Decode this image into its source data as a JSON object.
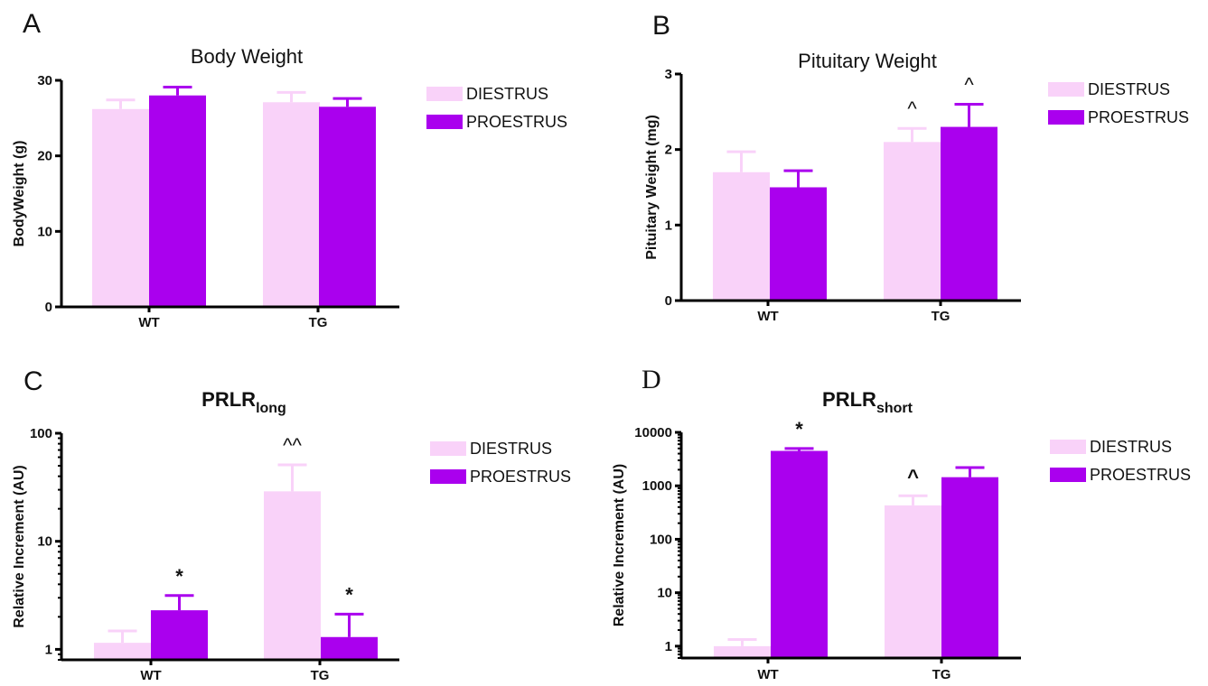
{
  "colors": {
    "diestrus": "#f9d2f9",
    "proestrus": "#aa00ee",
    "axis": "#000000"
  },
  "chart_data": [
    {
      "panel": "A",
      "type": "bar",
      "title": "Body Weight",
      "title_sub": "",
      "ylabel": "BodyWeight (g)",
      "scale": "linear",
      "ylim": [
        0,
        30
      ],
      "yticks": [
        0,
        10,
        20,
        30
      ],
      "ytick_labels": [
        "0",
        "10",
        "20",
        "30"
      ],
      "categories": [
        "WT",
        "TG"
      ],
      "series": [
        {
          "name": "DIESTRUS",
          "values": [
            26.2,
            27.1
          ],
          "errors": [
            1.2,
            1.3
          ],
          "annotations": [
            "",
            ""
          ]
        },
        {
          "name": "PROESTRUS",
          "values": [
            28.0,
            26.5
          ],
          "errors": [
            1.1,
            1.1
          ],
          "annotations": [
            "",
            ""
          ]
        }
      ],
      "legend": "right"
    },
    {
      "panel": "B",
      "type": "bar",
      "title": "Pituitary Weight",
      "title_sub": "",
      "ylabel": "Pituitary Weight (mg)",
      "scale": "linear",
      "ylim": [
        0,
        3
      ],
      "yticks": [
        0,
        1,
        2,
        3
      ],
      "ytick_labels": [
        "0",
        "1",
        "2",
        "3"
      ],
      "categories": [
        "WT",
        "TG"
      ],
      "series": [
        {
          "name": "DIESTRUS",
          "values": [
            1.7,
            2.1
          ],
          "errors": [
            0.27,
            0.18
          ],
          "annotations": [
            "",
            "^"
          ]
        },
        {
          "name": "PROESTRUS",
          "values": [
            1.5,
            2.3
          ],
          "errors": [
            0.22,
            0.3
          ],
          "annotations": [
            "",
            "^"
          ]
        }
      ],
      "legend": "right"
    },
    {
      "panel": "C",
      "type": "bar",
      "title": "PRLR",
      "title_sub": "long",
      "ylabel": "Relative Increment (AU)",
      "scale": "log",
      "ylim": [
        0.8,
        100
      ],
      "yticks": [
        1,
        10,
        100
      ],
      "ytick_labels": [
        "1",
        "10",
        "100"
      ],
      "categories": [
        "WT",
        "TG"
      ],
      "series": [
        {
          "name": "DIESTRUS",
          "values": [
            1.15,
            29
          ],
          "errors": [
            0.33,
            22
          ],
          "annotations": [
            "",
            "^^"
          ]
        },
        {
          "name": "PROESTRUS",
          "values": [
            2.3,
            1.3
          ],
          "errors": [
            0.85,
            0.82
          ],
          "annotations": [
            "*",
            "*"
          ]
        }
      ],
      "legend": "right"
    },
    {
      "panel": "D",
      "type": "bar",
      "title": "PRLR",
      "title_sub": "short",
      "ylabel": "Relative Increment (AU)",
      "scale": "log",
      "ylim": [
        0.6,
        10000
      ],
      "yticks": [
        1,
        10,
        100,
        1000,
        10000
      ],
      "ytick_labels": [
        "1",
        "10",
        "100",
        "1000",
        "10000"
      ],
      "categories": [
        "WT",
        "TG"
      ],
      "series": [
        {
          "name": "DIESTRUS",
          "values": [
            1.0,
            430
          ],
          "errors": [
            0.33,
            220
          ],
          "annotations": [
            "",
            "^"
          ]
        },
        {
          "name": "PROESTRUS",
          "values": [
            4500,
            1450
          ],
          "errors": [
            500,
            750
          ],
          "annotations": [
            "*",
            ""
          ]
        }
      ],
      "legend": "right"
    }
  ]
}
